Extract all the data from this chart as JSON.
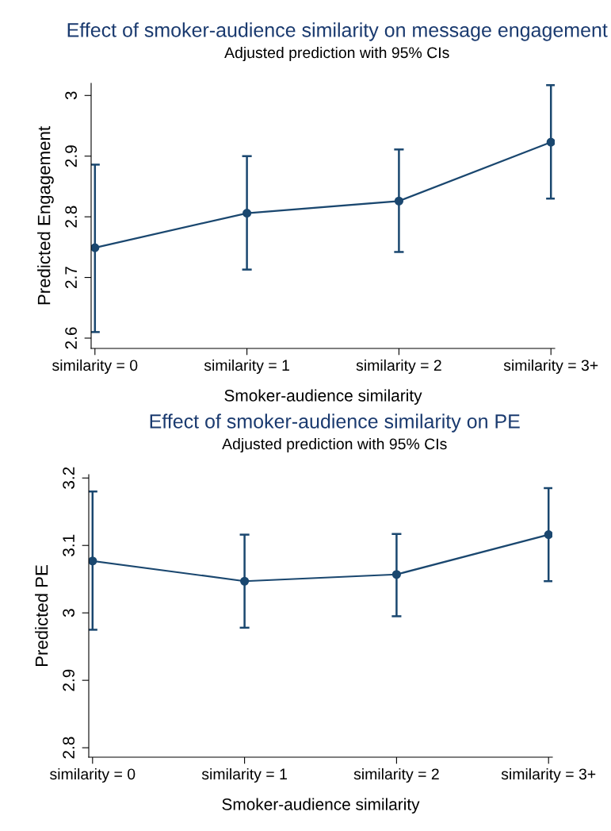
{
  "chart_data": [
    {
      "type": "line",
      "title": "Effect of smoker-audience similarity on message engagement",
      "subtitle": "Adjusted prediction with 95% CIs",
      "xlabel": "Smoker-audience similarity",
      "ylabel": "Predicted Engagement",
      "categories": [
        "similarity = 0",
        "similarity = 1",
        "similarity = 2",
        "similarity = 3+"
      ],
      "series": [
        {
          "color": "#1a476f",
          "values": [
            2.749,
            2.806,
            2.826,
            2.923
          ],
          "errors": [
            [
              2.61,
              2.886
            ],
            [
              2.713,
              2.9
            ],
            [
              2.742,
              2.911
            ],
            [
              2.83,
              3.017
            ]
          ]
        }
      ],
      "ylim": [
        2.583,
        3.02
      ],
      "yticks": [
        2.6,
        2.7,
        2.8,
        2.9,
        3
      ],
      "marker": "circle",
      "grid": false,
      "legend": false
    },
    {
      "type": "line",
      "title": "Effect of smoker-audience similarity on PE",
      "subtitle": "Adjusted prediction with 95% CIs",
      "xlabel": "Smoker-audience similarity",
      "ylabel": "Predicted PE",
      "categories": [
        "similarity = 0",
        "similarity = 1",
        "similarity = 2",
        "similarity = 3+"
      ],
      "series": [
        {
          "color": "#1a476f",
          "values": [
            3.077,
            3.047,
            3.057,
            3.116
          ],
          "errors": [
            [
              2.975,
              3.18
            ],
            [
              2.978,
              3.116
            ],
            [
              2.995,
              3.117
            ],
            [
              3.047,
              3.185
            ]
          ]
        }
      ],
      "ylim": [
        2.786,
        3.205
      ],
      "yticks": [
        2.8,
        2.9,
        3,
        3.1,
        3.2
      ],
      "marker": "circle",
      "grid": false,
      "legend": false
    }
  ]
}
